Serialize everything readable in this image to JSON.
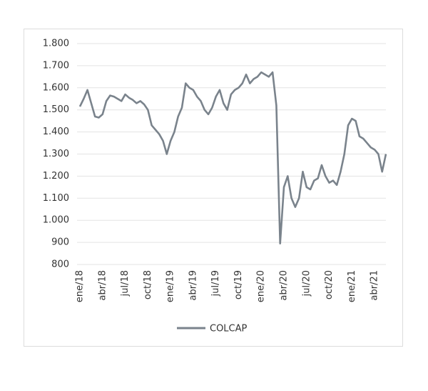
{
  "chart_data": {
    "type": "line",
    "categories": [
      "ene/18",
      null,
      null,
      null,
      null,
      null,
      "abr/18",
      null,
      null,
      null,
      null,
      null,
      "jul/18",
      null,
      null,
      null,
      null,
      null,
      "oct/18",
      null,
      null,
      null,
      null,
      null,
      "ene/19",
      null,
      null,
      null,
      null,
      null,
      "abr/19",
      null,
      null,
      null,
      null,
      null,
      "jul/19",
      null,
      null,
      null,
      null,
      null,
      "oct/19",
      null,
      null,
      null,
      null,
      null,
      "ene/20",
      null,
      null,
      null,
      null,
      null,
      "abr/20",
      null,
      null,
      null,
      null,
      null,
      "jul/20",
      null,
      null,
      null,
      null,
      null,
      "oct/20",
      null,
      null,
      null,
      null,
      null,
      "ene/21",
      null,
      null,
      null,
      null,
      null,
      "abr/21",
      null,
      null,
      null
    ],
    "series": [
      {
        "name": "COLCAP",
        "color": "#7a838c",
        "values": [
          1515,
          1550,
          1590,
          1530,
          1470,
          1465,
          1480,
          1540,
          1565,
          1560,
          1550,
          1540,
          1570,
          1555,
          1545,
          1530,
          1540,
          1525,
          1500,
          1430,
          1410,
          1390,
          1360,
          1300,
          1360,
          1400,
          1470,
          1510,
          1620,
          1600,
          1590,
          1560,
          1540,
          1500,
          1480,
          1510,
          1560,
          1590,
          1530,
          1500,
          1570,
          1590,
          1600,
          1620,
          1660,
          1620,
          1640,
          1650,
          1670,
          1660,
          1650,
          1670,
          1520,
          895,
          1150,
          1200,
          1100,
          1060,
          1100,
          1220,
          1150,
          1140,
          1180,
          1190,
          1250,
          1200,
          1170,
          1180,
          1160,
          1220,
          1300,
          1430,
          1460,
          1450,
          1380,
          1370,
          1350,
          1330,
          1320,
          1300,
          1220,
          1300
        ]
      }
    ],
    "ylim": [
      800,
      1800
    ],
    "yticks": [
      800,
      900,
      {
        "value": 1000,
        "label": "1.000"
      },
      {
        "value": 1100,
        "label": "1.100"
      },
      {
        "value": 1200,
        "label": "1.200"
      },
      {
        "value": 1300,
        "label": "1.300"
      },
      {
        "value": 1400,
        "label": "1.400"
      },
      {
        "value": 1500,
        "label": "1.500"
      },
      {
        "value": 1600,
        "label": "1.600"
      },
      {
        "value": 1700,
        "label": "1.700"
      },
      {
        "value": 1800,
        "label": "1.800"
      }
    ],
    "grid": true,
    "legend": "bottom"
  }
}
